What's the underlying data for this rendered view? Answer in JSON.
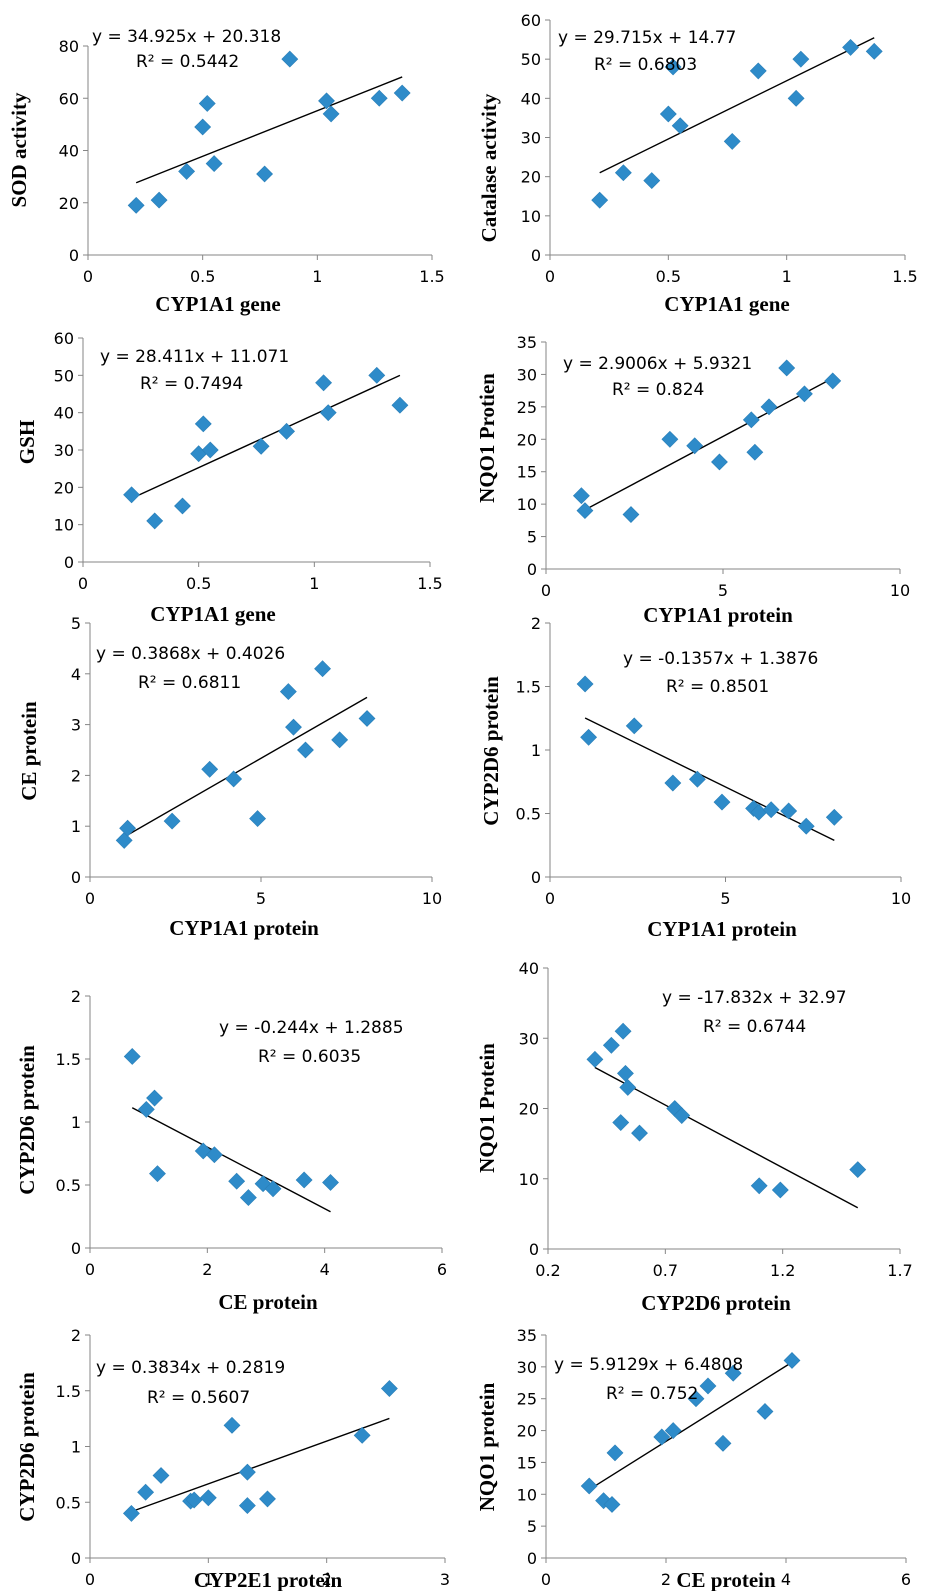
{
  "colors": {
    "marker": "#2e8bc9",
    "axis": "#868686",
    "trend": "#000000",
    "tick_text": "#000000"
  },
  "chart_data": [
    {
      "type": "scatter",
      "xlabel": "CYP1A1 gene",
      "ylabel": "SOD activity",
      "xlim": [
        0,
        1.5
      ],
      "xticks": [
        0,
        0.5,
        1,
        1.5
      ],
      "xtick_labels": [
        "0",
        "0.5",
        "1",
        "1.5"
      ],
      "ylim": [
        0,
        80
      ],
      "yticks": [
        0,
        20,
        40,
        60,
        80
      ],
      "ytick_labels": [
        "0",
        "20",
        "40",
        "60",
        "80"
      ],
      "points": [
        [
          0.21,
          19
        ],
        [
          0.31,
          21
        ],
        [
          0.43,
          32
        ],
        [
          0.5,
          49
        ],
        [
          0.52,
          58
        ],
        [
          0.55,
          35
        ],
        [
          0.77,
          31
        ],
        [
          0.88,
          75
        ],
        [
          1.04,
          59
        ],
        [
          1.06,
          54
        ],
        [
          1.27,
          60
        ],
        [
          1.37,
          62
        ]
      ],
      "trend": {
        "slope": 34.925,
        "intercept": 20.318,
        "x_from": 0.21,
        "x_to": 1.37
      },
      "equation": "y = 34.925x + 20.318",
      "r2": "R² = 0.5442"
    },
    {
      "type": "scatter",
      "xlabel": "CYP1A1 gene",
      "ylabel": "Catalase activity",
      "xlim": [
        0,
        1.5
      ],
      "xticks": [
        0,
        0.5,
        1,
        1.5
      ],
      "xtick_labels": [
        "0",
        "0.5",
        "1",
        "1.5"
      ],
      "ylim": [
        0,
        60
      ],
      "yticks": [
        0,
        10,
        20,
        30,
        40,
        50,
        60
      ],
      "ytick_labels": [
        "0",
        "10",
        "20",
        "30",
        "40",
        "50",
        "60"
      ],
      "points": [
        [
          0.21,
          14
        ],
        [
          0.31,
          21
        ],
        [
          0.43,
          19
        ],
        [
          0.5,
          36
        ],
        [
          0.52,
          48
        ],
        [
          0.55,
          33
        ],
        [
          0.77,
          29
        ],
        [
          0.88,
          47
        ],
        [
          1.04,
          40
        ],
        [
          1.06,
          50
        ],
        [
          1.27,
          53
        ],
        [
          1.37,
          52
        ]
      ],
      "trend": {
        "slope": 29.715,
        "intercept": 14.77,
        "x_from": 0.21,
        "x_to": 1.37
      },
      "equation": "y = 29.715x + 14.77",
      "r2": "R² = 0.6803"
    },
    {
      "type": "scatter",
      "xlabel": "CYP1A1 gene",
      "ylabel": "GSH",
      "xlim": [
        0,
        1.5
      ],
      "xticks": [
        0,
        0.5,
        1,
        1.5
      ],
      "xtick_labels": [
        "0",
        "0.5",
        "1",
        "1.5"
      ],
      "ylim": [
        0,
        60
      ],
      "yticks": [
        0,
        10,
        20,
        30,
        40,
        50,
        60
      ],
      "ytick_labels": [
        "0",
        "10",
        "20",
        "30",
        "40",
        "50",
        "60"
      ],
      "points": [
        [
          0.21,
          18
        ],
        [
          0.31,
          11
        ],
        [
          0.43,
          15
        ],
        [
          0.5,
          29
        ],
        [
          0.52,
          37
        ],
        [
          0.55,
          30
        ],
        [
          0.77,
          31
        ],
        [
          0.88,
          35
        ],
        [
          1.04,
          48
        ],
        [
          1.06,
          40
        ],
        [
          1.27,
          50
        ],
        [
          1.37,
          42
        ]
      ],
      "trend": {
        "slope": 28.411,
        "intercept": 11.071,
        "x_from": 0.21,
        "x_to": 1.37
      },
      "equation": "y = 28.411x + 11.071",
      "r2": "R² = 0.7494"
    },
    {
      "type": "scatter",
      "xlabel": "CYP1A1 protein",
      "ylabel": "NQO1 Protien",
      "xlim": [
        0,
        10
      ],
      "xticks": [
        0,
        5,
        10
      ],
      "xtick_labels": [
        "0",
        "5",
        "10"
      ],
      "ylim": [
        0,
        35
      ],
      "yticks": [
        0,
        5,
        10,
        15,
        20,
        25,
        30,
        35
      ],
      "ytick_labels": [
        "0",
        "5",
        "10",
        "15",
        "20",
        "25",
        "30",
        "35"
      ],
      "points": [
        [
          1.0,
          11.3
        ],
        [
          1.1,
          9
        ],
        [
          2.4,
          8.4
        ],
        [
          3.5,
          20
        ],
        [
          4.2,
          19
        ],
        [
          4.9,
          16.5
        ],
        [
          5.8,
          23
        ],
        [
          5.9,
          18
        ],
        [
          6.3,
          25
        ],
        [
          6.8,
          31
        ],
        [
          7.3,
          27
        ],
        [
          8.1,
          29
        ]
      ],
      "trend": {
        "slope": 2.9006,
        "intercept": 5.9321,
        "x_from": 1.0,
        "x_to": 8.1
      },
      "equation": "y = 2.9006x + 5.9321",
      "r2": "R² = 0.824"
    },
    {
      "type": "scatter",
      "xlabel": "CYP1A1 protein",
      "ylabel": "CE protein",
      "xlim": [
        0,
        10
      ],
      "xticks": [
        0,
        5,
        10
      ],
      "xtick_labels": [
        "0",
        "5",
        "10"
      ],
      "ylim": [
        0,
        5
      ],
      "yticks": [
        0,
        1,
        2,
        3,
        4,
        5
      ],
      "ytick_labels": [
        "0",
        "1",
        "2",
        "3",
        "4",
        "5"
      ],
      "points": [
        [
          1.0,
          0.72
        ],
        [
          1.1,
          0.96
        ],
        [
          2.4,
          1.1
        ],
        [
          3.5,
          2.12
        ],
        [
          4.2,
          1.93
        ],
        [
          4.9,
          1.15
        ],
        [
          5.8,
          3.65
        ],
        [
          5.95,
          2.95
        ],
        [
          6.3,
          2.5
        ],
        [
          6.8,
          4.1
        ],
        [
          7.3,
          2.7
        ],
        [
          8.1,
          3.12
        ]
      ],
      "trend": {
        "slope": 0.3868,
        "intercept": 0.4026,
        "x_from": 1.0,
        "x_to": 8.1
      },
      "equation": "y = 0.3868x + 0.4026",
      "r2": "R² = 0.6811"
    },
    {
      "type": "scatter",
      "xlabel": "CYP1A1 protein",
      "ylabel": "CYP2D6 protein",
      "xlim": [
        0,
        10
      ],
      "xticks": [
        0,
        5,
        10
      ],
      "xtick_labels": [
        "0",
        "5",
        "10"
      ],
      "ylim": [
        0,
        2
      ],
      "yticks": [
        0,
        0.5,
        1,
        1.5,
        2
      ],
      "ytick_labels": [
        "0",
        "0.5",
        "1",
        "1.5",
        "2"
      ],
      "points": [
        [
          1.0,
          1.52
        ],
        [
          1.1,
          1.1
        ],
        [
          2.4,
          1.19
        ],
        [
          3.5,
          0.74
        ],
        [
          4.2,
          0.77
        ],
        [
          4.9,
          0.59
        ],
        [
          5.8,
          0.54
        ],
        [
          5.95,
          0.51
        ],
        [
          6.3,
          0.53
        ],
        [
          6.8,
          0.52
        ],
        [
          7.3,
          0.4
        ],
        [
          8.1,
          0.47
        ]
      ],
      "trend": {
        "slope": -0.1357,
        "intercept": 1.3876,
        "x_from": 1.0,
        "x_to": 8.1
      },
      "equation": "y = -0.1357x + 1.3876",
      "r2": "R² = 0.8501"
    },
    {
      "type": "scatter",
      "xlabel": "CE protein",
      "ylabel": "CYP2D6 protein",
      "xlim": [
        0,
        6
      ],
      "xticks": [
        0,
        2,
        4,
        6
      ],
      "xtick_labels": [
        "0",
        "2",
        "4",
        "6"
      ],
      "ylim": [
        0,
        2
      ],
      "yticks": [
        0,
        0.5,
        1,
        1.5,
        2
      ],
      "ytick_labels": [
        "0",
        "0.5",
        "1",
        "1.5",
        "2"
      ],
      "points": [
        [
          0.72,
          1.52
        ],
        [
          0.96,
          1.1
        ],
        [
          1.1,
          1.19
        ],
        [
          1.15,
          0.59
        ],
        [
          1.93,
          0.77
        ],
        [
          2.12,
          0.74
        ],
        [
          2.5,
          0.53
        ],
        [
          2.7,
          0.4
        ],
        [
          2.95,
          0.51
        ],
        [
          3.12,
          0.47
        ],
        [
          3.65,
          0.54
        ],
        [
          4.1,
          0.52
        ]
      ],
      "trend": {
        "slope": -0.244,
        "intercept": 1.2885,
        "x_from": 0.72,
        "x_to": 4.1
      },
      "equation": "y = -0.244x + 1.2885",
      "r2": "R² = 0.6035"
    },
    {
      "type": "scatter",
      "xlabel": "CYP2D6 protein",
      "ylabel": "NQO1 Protein",
      "xlim": [
        0.2,
        1.7
      ],
      "xticks": [
        0.2,
        0.7,
        1.2,
        1.7
      ],
      "xtick_labels": [
        "0.2",
        "0.7",
        "1.2",
        "1.7"
      ],
      "ylim": [
        0,
        40
      ],
      "yticks": [
        0,
        10,
        20,
        30,
        40
      ],
      "ytick_labels": [
        "0",
        "10",
        "20",
        "30",
        "40"
      ],
      "points": [
        [
          0.4,
          27
        ],
        [
          0.47,
          29
        ],
        [
          0.51,
          18
        ],
        [
          0.52,
          31
        ],
        [
          0.53,
          25
        ],
        [
          0.54,
          23
        ],
        [
          0.59,
          16.5
        ],
        [
          0.74,
          20
        ],
        [
          0.77,
          19
        ],
        [
          1.1,
          9
        ],
        [
          1.19,
          8.4
        ],
        [
          1.52,
          11.3
        ]
      ],
      "trend": {
        "slope": -17.832,
        "intercept": 32.97,
        "x_from": 0.4,
        "x_to": 1.52
      },
      "equation": "y = -17.832x + 32.97",
      "r2": "R² = 0.6744"
    },
    {
      "type": "scatter",
      "xlabel": "CYP2E1 protein",
      "ylabel": "CYP2D6 protein",
      "xlim": [
        0,
        3
      ],
      "xticks": [
        0,
        1,
        2,
        3
      ],
      "xtick_labels": [
        "0",
        "1",
        "2",
        "3"
      ],
      "ylim": [
        0,
        2
      ],
      "yticks": [
        0,
        0.5,
        1,
        1.5,
        2
      ],
      "ytick_labels": [
        "0",
        "0.5",
        "1",
        "1.5",
        "2"
      ],
      "points": [
        [
          0.35,
          0.4
        ],
        [
          0.47,
          0.59
        ],
        [
          0.6,
          0.74
        ],
        [
          0.85,
          0.51
        ],
        [
          0.88,
          0.52
        ],
        [
          1.0,
          0.54
        ],
        [
          1.2,
          1.19
        ],
        [
          1.33,
          0.77
        ],
        [
          1.33,
          0.47
        ],
        [
          1.5,
          0.53
        ],
        [
          2.3,
          1.1
        ],
        [
          2.53,
          1.52
        ]
      ],
      "trend": {
        "slope": 0.3834,
        "intercept": 0.2819,
        "x_from": 0.35,
        "x_to": 2.53
      },
      "equation": "y = 0.3834x + 0.2819",
      "r2": "R² = 0.5607"
    },
    {
      "type": "scatter",
      "xlabel": "CE protein",
      "ylabel": "NQO1 protein",
      "xlim": [
        0,
        6
      ],
      "xticks": [
        0,
        2,
        4,
        6
      ],
      "xtick_labels": [
        "0",
        "2",
        "4",
        "6"
      ],
      "ylim": [
        0,
        35
      ],
      "yticks": [
        0,
        5,
        10,
        15,
        20,
        25,
        30,
        35
      ],
      "ytick_labels": [
        "0",
        "5",
        "10",
        "15",
        "20",
        "25",
        "30",
        "35"
      ],
      "points": [
        [
          0.72,
          11.3
        ],
        [
          0.96,
          9
        ],
        [
          1.1,
          8.4
        ],
        [
          1.15,
          16.5
        ],
        [
          1.93,
          19
        ],
        [
          2.12,
          20
        ],
        [
          2.5,
          25
        ],
        [
          2.7,
          27
        ],
        [
          2.95,
          18
        ],
        [
          3.12,
          29
        ],
        [
          3.65,
          23
        ],
        [
          4.1,
          31
        ]
      ],
      "trend": {
        "slope": 5.9129,
        "intercept": 6.4808,
        "x_from": 0.72,
        "x_to": 4.1
      },
      "equation": "y = 5.9129x + 6.4808",
      "r2": "R² = 0.752"
    }
  ]
}
